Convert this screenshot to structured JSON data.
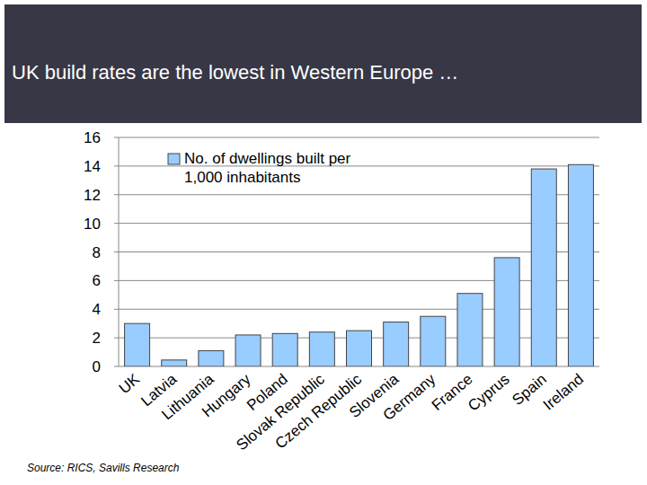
{
  "chart_data": {
    "type": "bar",
    "title": "UK build rates are the lowest in Western Europe …",
    "source": "Source: RICS, Savills Research",
    "categories": [
      "UK",
      "Latvia",
      "Lithuania",
      "Hungary",
      "Poland",
      "Slovak Republic",
      "Czech Republic",
      "Slovenia",
      "Germany",
      "France",
      "Cyprus",
      "Spain",
      "Ireland"
    ],
    "series": [
      {
        "name": "No. of dwellings built per 1,000 inhabitants",
        "color": "#99ccff",
        "values": [
          3.0,
          0.45,
          1.1,
          2.2,
          2.3,
          2.4,
          2.5,
          3.1,
          3.5,
          5.1,
          7.6,
          13.8,
          14.1
        ]
      }
    ],
    "ylim": [
      0,
      16
    ],
    "yticks": [
      0,
      2,
      4,
      6,
      8,
      10,
      12,
      14,
      16
    ],
    "grid": true,
    "legend": "top-left"
  }
}
